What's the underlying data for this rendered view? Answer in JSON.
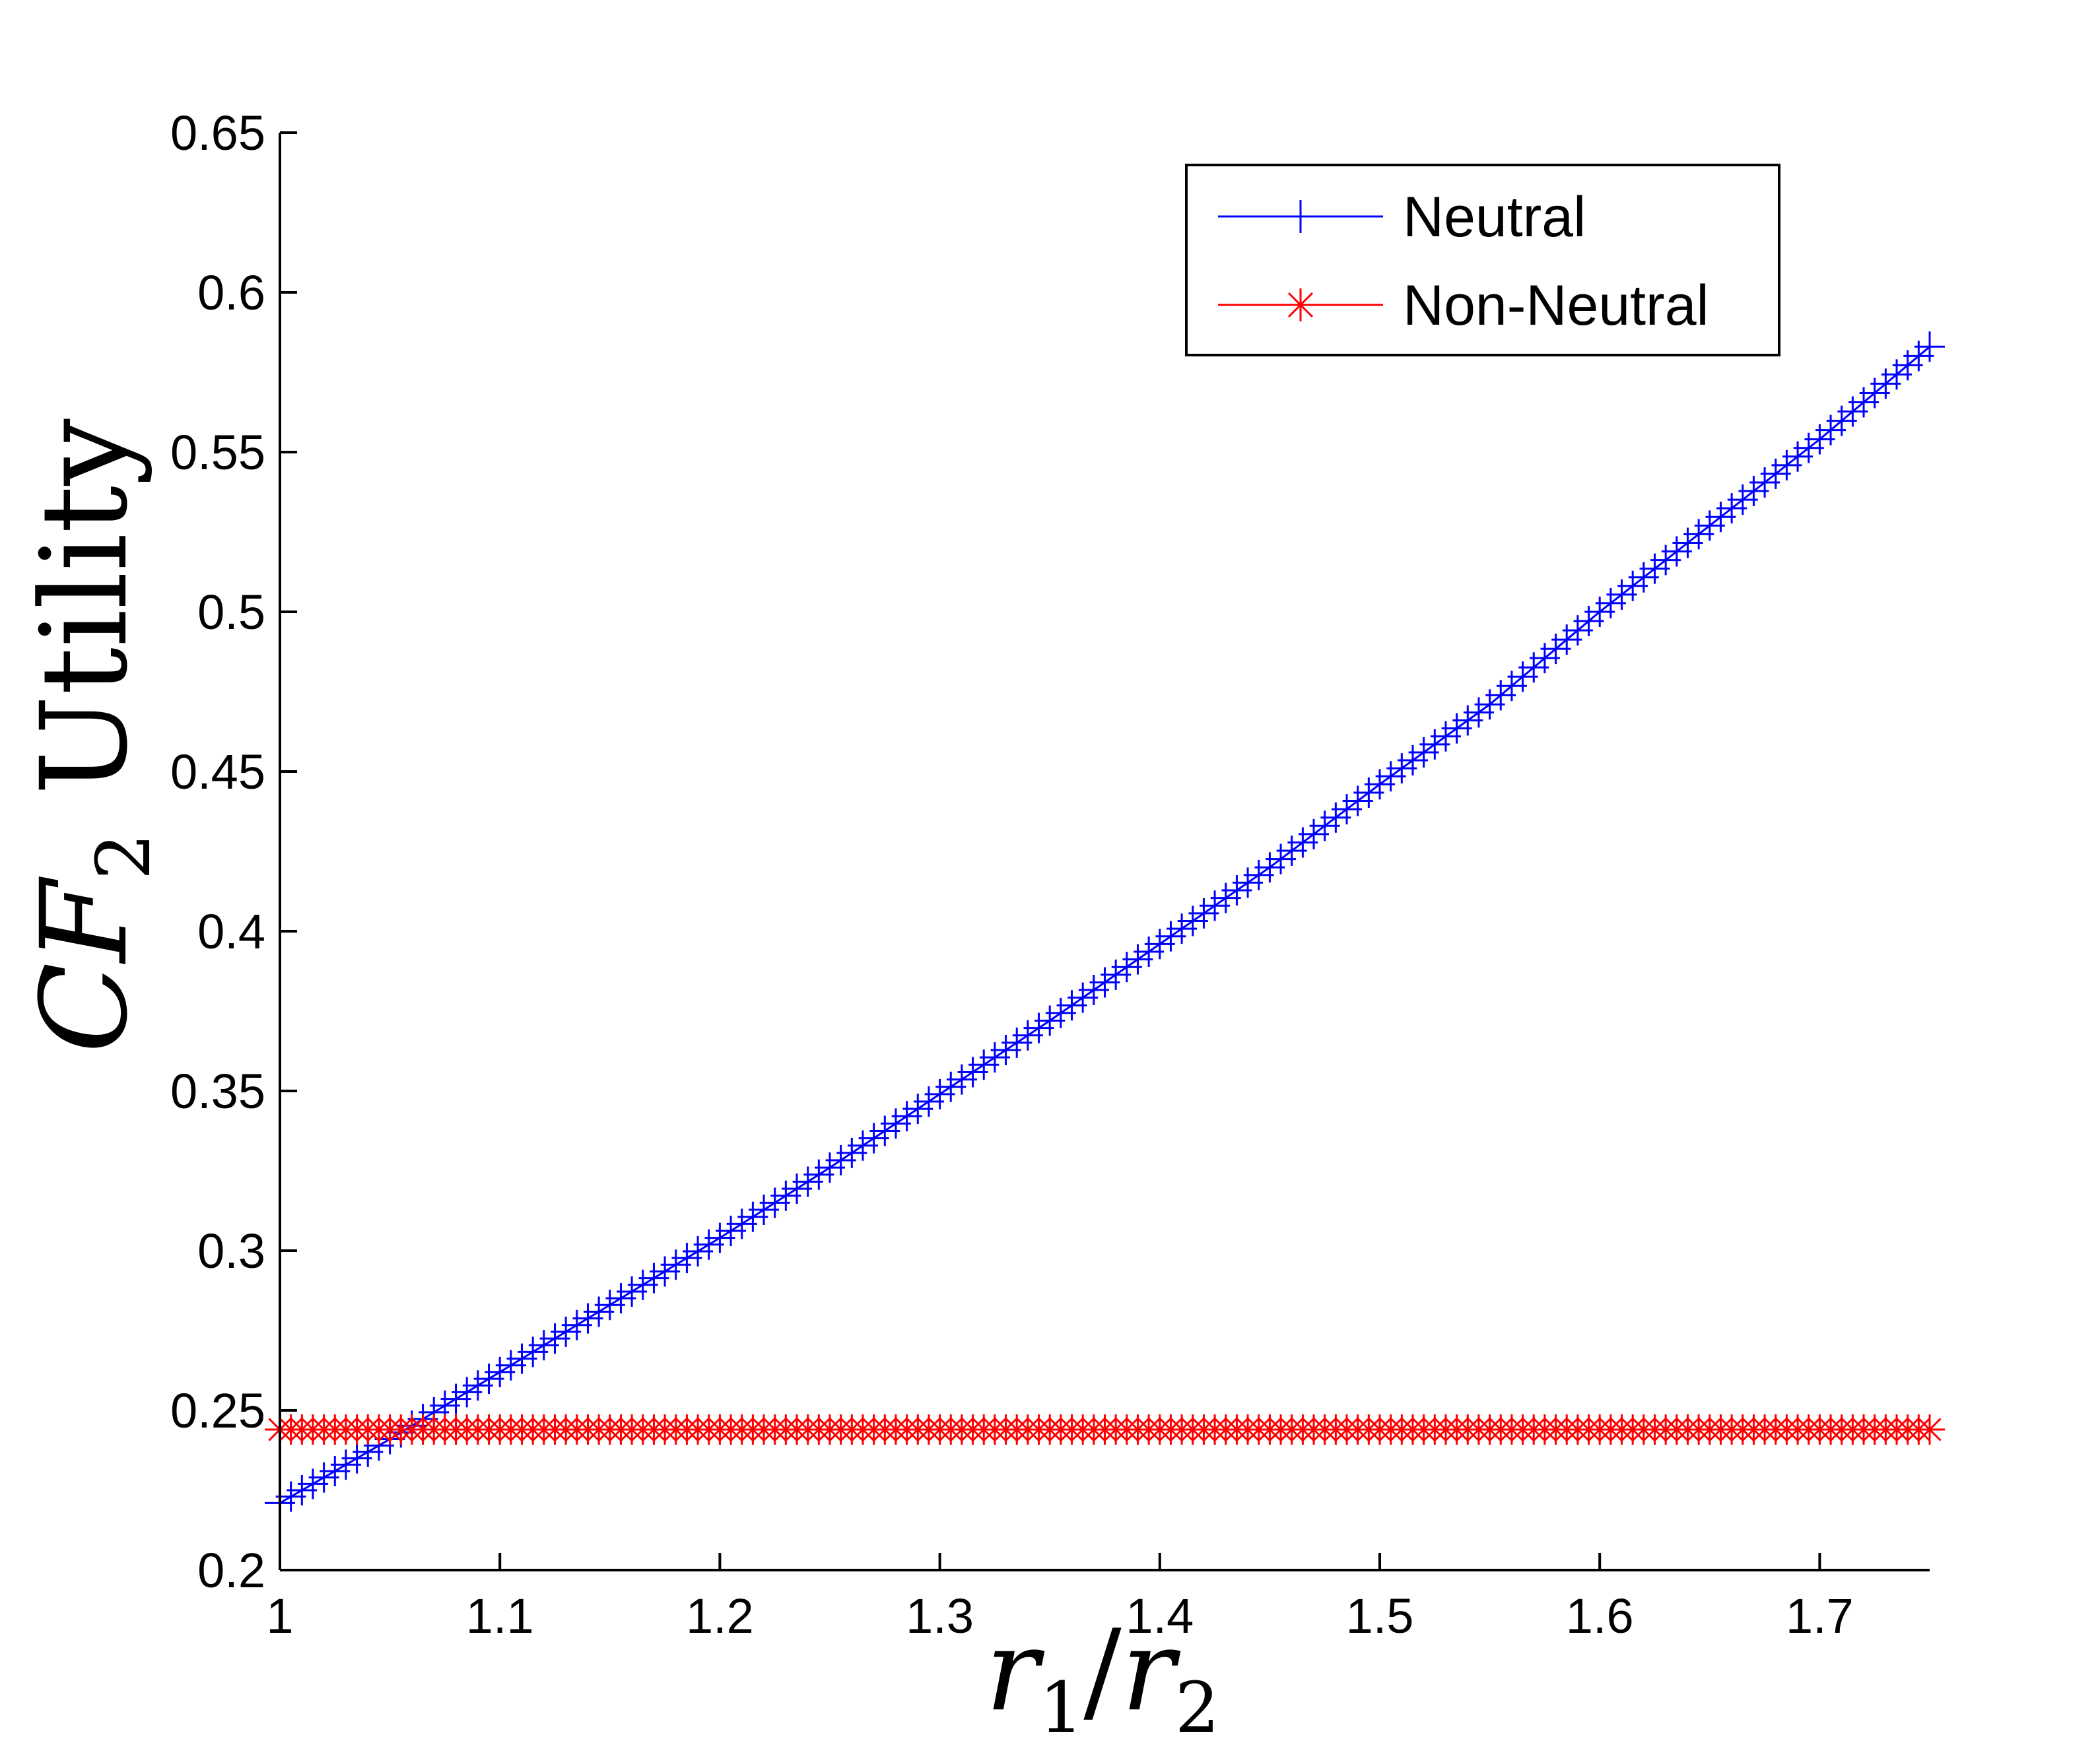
{
  "chart_data": {
    "type": "line",
    "title": "",
    "xlabel": {
      "base": "r",
      "sub1": "1",
      "slash": "/",
      "base2": "r",
      "sub2": "2"
    },
    "ylabel": {
      "base": "CF",
      "sub": "2",
      "rest": " Utility"
    },
    "xlim": [
      1,
      1.75
    ],
    "ylim": [
      0.2,
      0.65
    ],
    "xticks": [
      1,
      1.1,
      1.2,
      1.3,
      1.4,
      1.5,
      1.6,
      1.7
    ],
    "xtick_labels": [
      "1",
      "1.1",
      "1.2",
      "1.3",
      "1.4",
      "1.5",
      "1.6",
      "1.7"
    ],
    "yticks": [
      0.2,
      0.25,
      0.3,
      0.35,
      0.4,
      0.45,
      0.5,
      0.55,
      0.6,
      0.65
    ],
    "ytick_labels": [
      "0.2",
      "0.25",
      "0.3",
      "0.35",
      "0.4",
      "0.45",
      "0.5",
      "0.55",
      "0.6",
      "0.65"
    ],
    "grid": false,
    "legend_position": "top-right",
    "x_step": 0.005,
    "series": [
      {
        "name": "Neutral",
        "color": "#0000ff",
        "marker": "plus",
        "x": [
          1.0,
          1.05,
          1.1,
          1.15,
          1.2,
          1.25,
          1.3,
          1.35,
          1.4,
          1.45,
          1.5,
          1.55,
          1.6,
          1.65,
          1.7,
          1.75
        ],
        "y": [
          0.221,
          0.241,
          0.262,
          0.283,
          0.304,
          0.326,
          0.349,
          0.372,
          0.396,
          0.42,
          0.446,
          0.471,
          0.5,
          0.527,
          0.554,
          0.583
        ]
      },
      {
        "name": "Non-Neutral",
        "color": "#ff0000",
        "marker": "asterisk",
        "x": [
          1.0,
          1.75
        ],
        "y": [
          0.244,
          0.244
        ]
      }
    ]
  }
}
